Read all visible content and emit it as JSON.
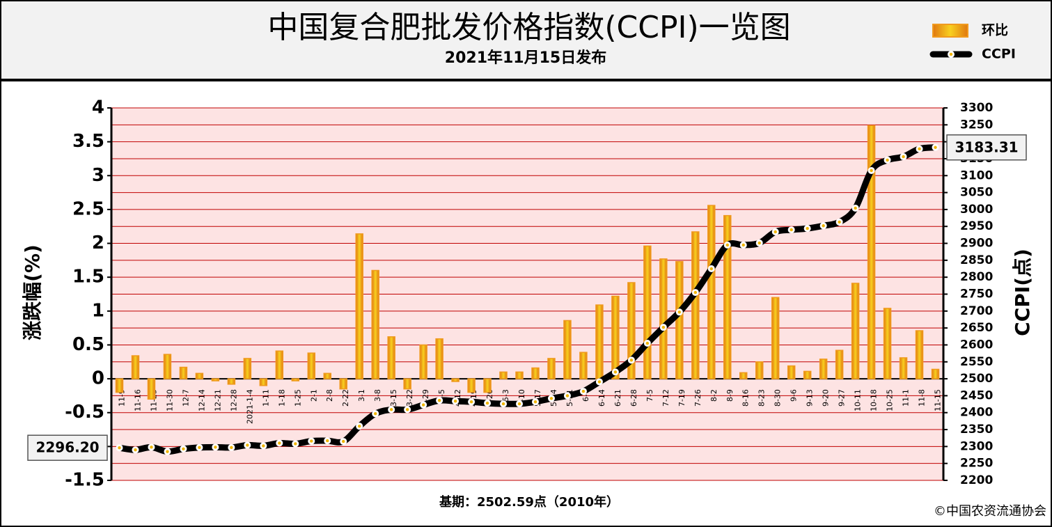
{
  "chart_data": {
    "type": "bar",
    "title": "中国复合肥批发价格指数(CCPI)一览图",
    "subtitle": "2021年11月15日发布",
    "y_label": "涨跌幅(%)",
    "y2_label": "CCPI(点)",
    "note": "基期：2502.59点（2010年）",
    "source": "©中国农资流通协会",
    "legend_position": "top-right",
    "grid": true,
    "categories": [
      "11-9",
      "11-16",
      "11-23",
      "11-30",
      "12-7",
      "12-14",
      "12-21",
      "12-28",
      "2021-1-4",
      "1-11",
      "1-18",
      "1-25",
      "2-1",
      "2-8",
      "2-22",
      "3-1",
      "3-8",
      "3-15",
      "3-22",
      "3-29",
      "4-5",
      "4-12",
      "4-19",
      "4-26",
      "5-3",
      "5-10",
      "5-17",
      "5-24",
      "5-31",
      "6-7",
      "6-14",
      "6-21",
      "6-28",
      "7-5",
      "7-12",
      "7-19",
      "7-26",
      "8-2",
      "8-9",
      "8-16",
      "8-23",
      "8-30",
      "9-6",
      "9-13",
      "9-20",
      "9-27",
      "10-11",
      "10-18",
      "10-25",
      "11-1",
      "11-8",
      "11-15"
    ],
    "series": [
      {
        "name": "环比",
        "type": "bar",
        "color": "#f09a1e",
        "values": [
          -0.2,
          0.34,
          -0.3,
          0.36,
          0.17,
          0.08,
          -0.03,
          -0.08,
          0.3,
          -0.1,
          0.41,
          -0.03,
          0.38,
          0.08,
          -0.15,
          2.14,
          1.6,
          0.62,
          -0.15,
          0.5,
          0.59,
          -0.04,
          -0.2,
          -0.2,
          0.1,
          0.1,
          0.16,
          0.3,
          0.86,
          0.39,
          1.09,
          1.22,
          1.42,
          1.96,
          1.77,
          1.73,
          2.17,
          2.56,
          2.41,
          0.09,
          0.25,
          1.2,
          0.19,
          0.11,
          0.29,
          0.42,
          1.41,
          3.74,
          1.04,
          0.31,
          0.71,
          0.14
        ]
      },
      {
        "name": "CCPI",
        "type": "line",
        "axis": "y2",
        "color": "#000000",
        "values": [
          2296.2,
          2290,
          2298,
          2285,
          2293,
          2297,
          2298,
          2297,
          2304,
          2302,
          2310,
          2308,
          2316,
          2317,
          2315,
          2360,
          2397,
          2409,
          2409,
          2423,
          2436,
          2434,
          2432,
          2428,
          2426,
          2426,
          2432,
          2442,
          2450,
          2463,
          2491,
          2520,
          2555,
          2605,
          2652,
          2697,
          2755,
          2825,
          2895,
          2895,
          2901,
          2934,
          2940,
          2944,
          2952,
          2963,
          3004,
          3115,
          3146,
          3156,
          3179,
          3183.31
        ],
        "value_labels": [
          "2296.20",
          null,
          null,
          null,
          null,
          null,
          null,
          null,
          null,
          null,
          null,
          null,
          null,
          null,
          null,
          null,
          null,
          null,
          null,
          null,
          null,
          null,
          null,
          null,
          null,
          null,
          null,
          null,
          null,
          null,
          null,
          null,
          null,
          null,
          null,
          null,
          null,
          null,
          null,
          null,
          null,
          null,
          null,
          null,
          null,
          null,
          null,
          null,
          null,
          null,
          null,
          "3183.31"
        ]
      }
    ],
    "ylim": [
      -1.5,
      4
    ],
    "yticks": [
      -1.5,
      -1,
      -0.5,
      0,
      0.5,
      1,
      1.5,
      2,
      2.5,
      3,
      3.5,
      4
    ],
    "y2lim": [
      2200,
      3300
    ],
    "y2ticks": [
      2200,
      2250,
      2300,
      2350,
      2400,
      2450,
      2500,
      2550,
      2600,
      2650,
      2700,
      2750,
      2800,
      2850,
      2900,
      2950,
      3000,
      3050,
      3100,
      3150,
      3200,
      3250,
      3300
    ]
  }
}
